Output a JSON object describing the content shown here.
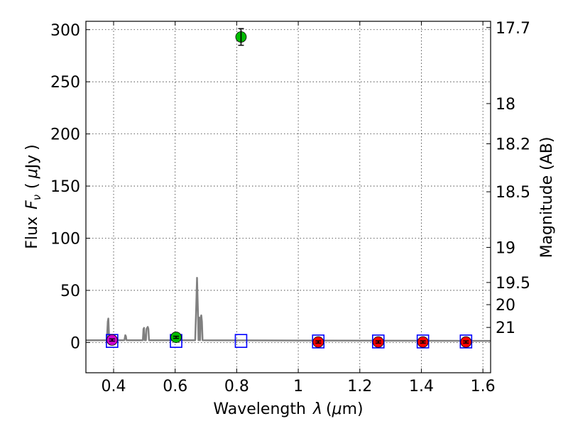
{
  "chart_data": {
    "type": "scatter",
    "title": "",
    "xlabel": "Wavelength",
    "xlabel_symbol": "λ",
    "xlabel_unit_open": "(",
    "xlabel_unit_mu": "μ",
    "xlabel_unit_rest": "m)",
    "ylabel": "Flux",
    "ylabel_symbol": "F",
    "ylabel_subscript": "ν",
    "ylabel_unit_open": "(",
    "ylabel_unit_mu": "μ",
    "ylabel_unit_rest": "Jy",
    "ylabel_unit_close": ")",
    "y2label": "Magnitude (AB)",
    "xlim": [
      0.31,
      1.625
    ],
    "ylim": [
      -29,
      308
    ],
    "grid": true,
    "x_ticks": [
      0.4,
      0.6,
      0.8,
      1.0,
      1.2,
      1.4,
      1.6
    ],
    "x_tick_labels": [
      "0.4",
      "0.6",
      "0.8",
      "1",
      "1.2",
      "1.4",
      "1.6"
    ],
    "y_ticks": [
      0,
      50,
      100,
      150,
      200,
      250,
      300
    ],
    "y_tick_labels": [
      "0",
      "50",
      "100",
      "150",
      "200",
      "250",
      "300"
    ],
    "y2_ticks": [
      17.7,
      18,
      18.2,
      18.5,
      19,
      19.5,
      20,
      21
    ],
    "y2_tick_labels": [
      "17.7",
      "18",
      "18.2",
      "18.5",
      "19",
      "19.5",
      "20",
      "21"
    ],
    "series": [
      {
        "name": "model spectrum",
        "kind": "line",
        "color": "#808080",
        "x": [
          0.31,
          0.378,
          0.381,
          0.383,
          0.385,
          0.387,
          0.435,
          0.438,
          0.44,
          0.442,
          0.495,
          0.497,
          0.499,
          0.501,
          0.503,
          0.505,
          0.507,
          0.509,
          0.511,
          0.513,
          0.515,
          0.665,
          0.668,
          0.671,
          0.674,
          0.676,
          0.678,
          0.681,
          0.683,
          0.685,
          0.687,
          0.689,
          1.0,
          1.625
        ],
        "y": [
          2.2,
          2.2,
          20,
          23,
          8,
          2.2,
          2.2,
          7,
          6,
          2.2,
          2.2,
          13,
          14,
          2.2,
          3,
          2.2,
          13,
          14,
          15,
          13,
          2.2,
          2.2,
          30,
          62,
          30,
          2.2,
          24,
          2.2,
          24,
          26,
          20,
          2.2,
          1.9,
          1.6
        ]
      },
      {
        "name": "observed magenta",
        "kind": "points",
        "color": "#cc00cc",
        "x": [
          0.395
        ],
        "y": [
          2.4
        ],
        "yerr": [
          1.0
        ]
      },
      {
        "name": "observed green",
        "kind": "points",
        "color": "#00bb00",
        "x": [
          0.603,
          0.814
        ],
        "y": [
          5.0,
          293.0
        ],
        "yerr": [
          1.0,
          8.0
        ]
      },
      {
        "name": "observed red",
        "kind": "points",
        "color": "#ff0000",
        "x": [
          1.065,
          1.26,
          1.405,
          1.545
        ],
        "y": [
          0.5,
          0.5,
          0.5,
          0.5
        ],
        "yerr": [
          1.0,
          1.0,
          1.0,
          1.0
        ]
      },
      {
        "name": "model photometry",
        "kind": "squares",
        "color": "#0000ff",
        "x": [
          0.395,
          0.603,
          0.814,
          1.065,
          1.26,
          1.405,
          1.545
        ],
        "y": [
          1.5,
          1.5,
          1.5,
          1.0,
          1.0,
          1.0,
          1.0
        ]
      }
    ]
  }
}
